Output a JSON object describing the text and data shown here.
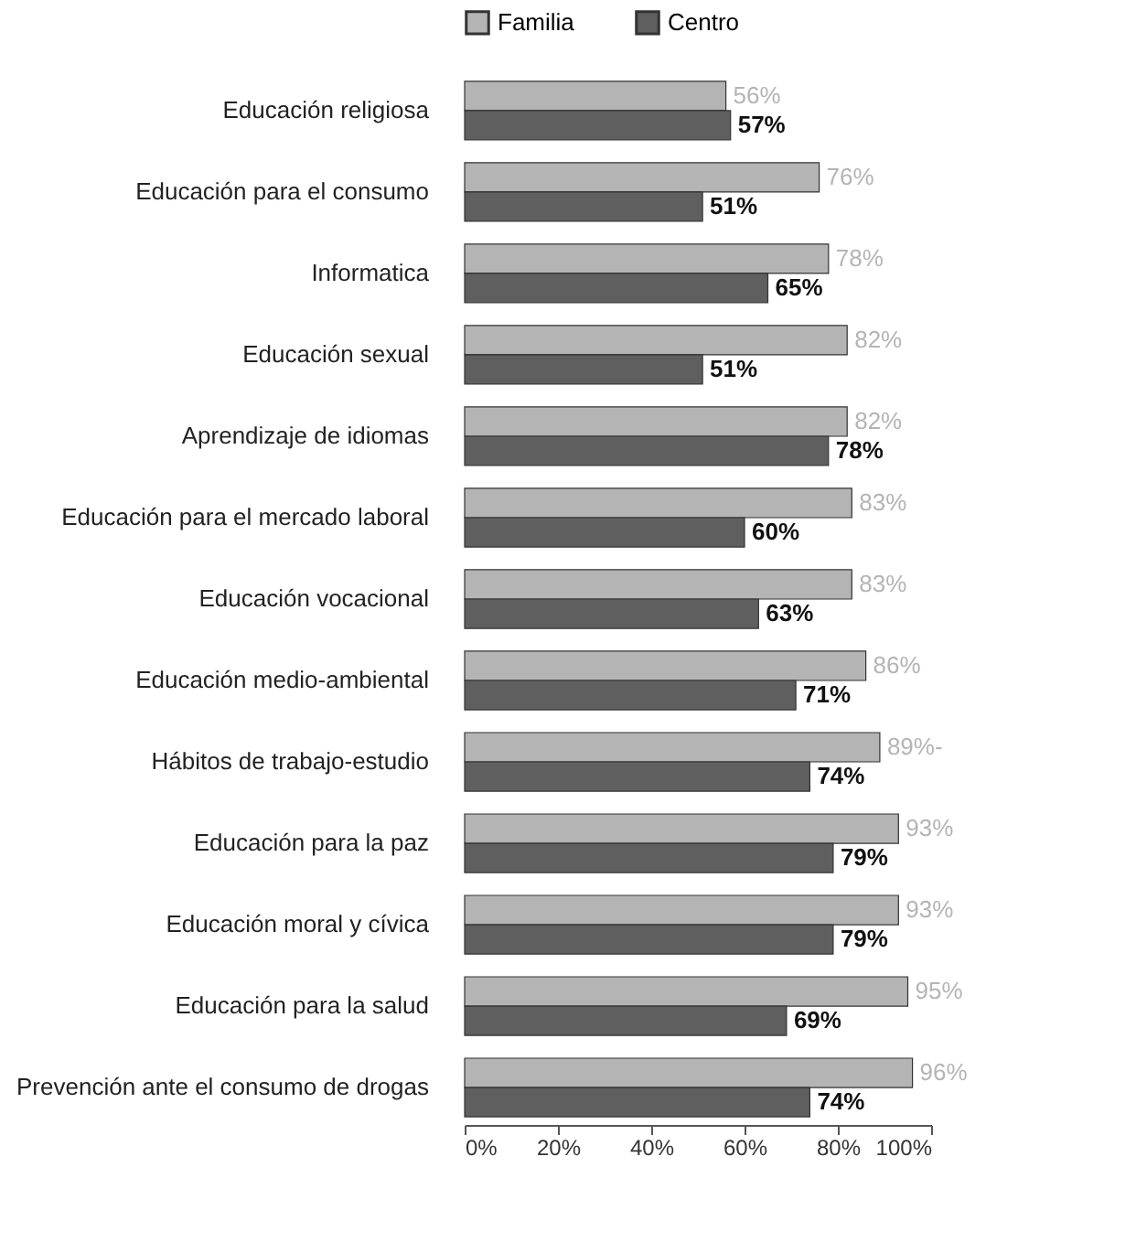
{
  "chart_data": {
    "type": "bar",
    "orientation": "horizontal",
    "categories": [
      "Educación religiosa",
      "Educación para el consumo",
      "Informatica",
      "Educación sexual",
      "Aprendizaje de idiomas",
      "Educación para el mercado laboral",
      "Educación vocacional",
      "Educación medio-ambiental",
      "Hábitos de trabajo-estudio",
      "Educación para la paz",
      "Educación moral y cívica",
      "Educación para la salud",
      "Prevención ante el consumo de drogas"
    ],
    "series": [
      {
        "name": "Familia",
        "color": "#b4b4b4",
        "values": [
          56,
          76,
          78,
          82,
          82,
          83,
          83,
          86,
          89,
          93,
          93,
          95,
          96
        ],
        "value_labels": [
          "56%",
          "76%",
          "78%",
          "82%",
          "82%",
          "83%",
          "83%",
          "86%",
          "89%-",
          "93%",
          "93%",
          "95%",
          "96%"
        ]
      },
      {
        "name": "Centro",
        "color": "#5f5f5f",
        "values": [
          57,
          51,
          65,
          51,
          78,
          60,
          63,
          71,
          74,
          79,
          79,
          69,
          74
        ],
        "value_labels": [
          "57%",
          "51%",
          "65%",
          "51%",
          "78%",
          "60%",
          "63%",
          "71%",
          "74%",
          "79%",
          "79%",
          "69%",
          "74%"
        ]
      }
    ],
    "xlim": [
      0,
      100
    ],
    "xticks": [
      {
        "value": 0,
        "label": "0%"
      },
      {
        "value": 20,
        "label": "20%"
      },
      {
        "value": 40,
        "label": "40%"
      },
      {
        "value": 60,
        "label": "60%"
      },
      {
        "value": 80,
        "label": "80%"
      },
      {
        "value": 100,
        "label": "100%"
      }
    ],
    "legend": "top",
    "grid": false
  }
}
